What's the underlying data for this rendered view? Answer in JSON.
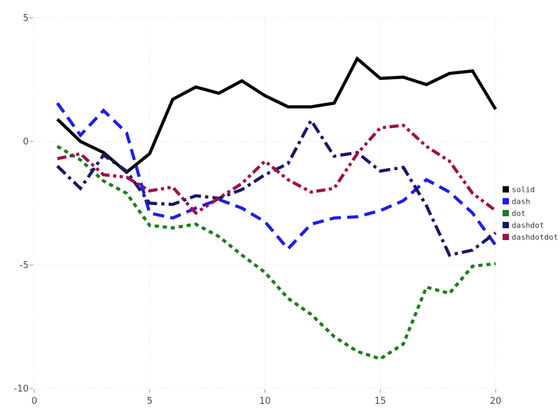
{
  "styles": {
    "background": "#ffffff",
    "grid_color": "#dcdcec",
    "tick_color": "#9999a8",
    "tick_label_color": "#4d4d4d",
    "legend_text_color": "#3a3a3a"
  },
  "chart_data": {
    "type": "line",
    "title": "",
    "xlabel": "",
    "ylabel": "",
    "xlim": [
      0,
      20.5
    ],
    "ylim": [
      -10.5,
      5.5
    ],
    "xticks": [
      0,
      5,
      10,
      15,
      20
    ],
    "yticks": [
      5,
      0,
      -5,
      -10
    ],
    "grid": "dotted",
    "legend": {
      "position": "right-outside",
      "entries": [
        "solid",
        "dash",
        "dot",
        "dashdot",
        "dashdotdot"
      ]
    },
    "x": [
      1,
      2,
      3,
      4,
      5,
      6,
      7,
      8,
      9,
      10,
      11,
      12,
      13,
      14,
      15,
      16,
      17,
      18,
      19,
      20
    ],
    "series": [
      {
        "name": "solid",
        "color": "#000000",
        "dash": "solid",
        "values": [
          0.9,
          0.0,
          -0.45,
          -1.25,
          -0.5,
          1.7,
          2.2,
          1.95,
          2.45,
          1.85,
          1.4,
          1.4,
          1.55,
          3.35,
          2.55,
          2.6,
          2.3,
          2.75,
          2.85,
          1.3
        ]
      },
      {
        "name": "dash",
        "color": "#1e1ee6",
        "dash": "dash",
        "values": [
          1.55,
          0.25,
          1.25,
          0.35,
          -2.9,
          -3.1,
          -2.7,
          -2.35,
          -2.7,
          -3.25,
          -4.35,
          -3.35,
          -3.1,
          -3.05,
          -2.8,
          -2.4,
          -1.55,
          -2.05,
          -2.9,
          -4.2
        ]
      },
      {
        "name": "dot",
        "color": "#1d7d1d",
        "dash": "dot",
        "values": [
          -0.2,
          -0.75,
          -1.6,
          -2.1,
          -3.4,
          -3.5,
          -3.35,
          -3.85,
          -4.6,
          -5.3,
          -6.35,
          -7.0,
          -7.9,
          -8.5,
          -8.8,
          -8.2,
          -5.9,
          -6.15,
          -5.05,
          -4.95
        ]
      },
      {
        "name": "dashdot",
        "color": "#171766",
        "dash": "dashdot",
        "values": [
          -1.0,
          -1.9,
          -0.55,
          -1.2,
          -2.5,
          -2.55,
          -2.2,
          -2.3,
          -1.95,
          -1.35,
          -0.9,
          0.85,
          -0.6,
          -0.45,
          -1.2,
          -1.05,
          -2.6,
          -4.6,
          -4.4,
          -3.7
        ]
      },
      {
        "name": "dashdotdot",
        "color": "#9e1148",
        "dash": "dashdotdot",
        "values": [
          -0.7,
          -0.5,
          -1.35,
          -1.45,
          -2.0,
          -1.85,
          -2.9,
          -2.3,
          -1.7,
          -0.8,
          -1.55,
          -2.05,
          -1.9,
          -0.5,
          0.55,
          0.65,
          -0.2,
          -0.8,
          -2.1,
          -2.8
        ]
      }
    ]
  }
}
